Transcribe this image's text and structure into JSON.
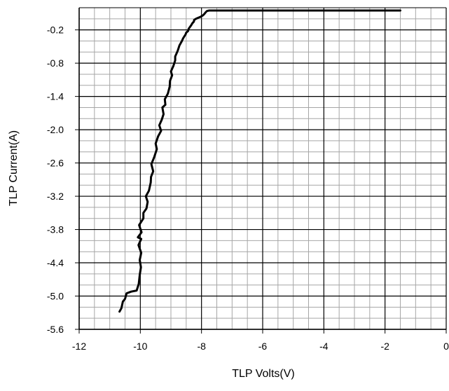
{
  "chart_data": {
    "type": "line",
    "title": "",
    "xlabel": "TLP Volts(V)",
    "ylabel": "TLP Current(A)",
    "xlim": [
      -12,
      0
    ],
    "ylim": [
      -5.6,
      0.2
    ],
    "x_ticks": [
      "-12",
      "-10",
      "-8",
      "-6",
      "-4",
      "-2",
      "0"
    ],
    "y_ticks": [
      "-0.2",
      "-0.8",
      "-1.4",
      "-2.0",
      "-2.6",
      "-3.2",
      "-3.8",
      "-4.4",
      "-5.0",
      "-5.6"
    ],
    "grid": true,
    "legend": false,
    "line_color": "#000000",
    "major_grid_color": "#000000",
    "minor_grid_color": "#a6a6a6",
    "series": [
      {
        "x": [
          -10.68,
          -10.62,
          -10.57,
          -10.5,
          -10.45,
          -10.3,
          -10.12,
          -10.05,
          -10.02,
          -9.98,
          -10.02,
          -9.97,
          -10.06,
          -9.97,
          -10.08,
          -9.96,
          -10.04,
          -9.9,
          -9.9,
          -9.8,
          -9.76,
          -9.82,
          -9.72,
          -9.66,
          -9.65,
          -9.58,
          -9.64,
          -9.55,
          -9.46,
          -9.5,
          -9.42,
          -9.32,
          -9.38,
          -9.3,
          -9.24,
          -9.28,
          -9.18,
          -9.2,
          -9.1,
          -9.04,
          -9.03,
          -8.96,
          -9.0,
          -8.92,
          -8.86,
          -8.86,
          -8.78,
          -8.72,
          -8.64,
          -8.6,
          -8.52,
          -8.5,
          -8.44,
          -8.42,
          -8.34,
          -8.3,
          -8.25,
          -8.24,
          -8.18,
          -8.1,
          -8.02,
          -7.96,
          -7.92,
          -7.86,
          -7.82,
          -7.75,
          -7.72,
          -7.66,
          -7.62,
          -7.55,
          -7.4,
          -7.0,
          -6.0,
          -5.0,
          -4.0,
          -3.0,
          -2.0,
          -1.5
        ],
        "y": [
          -5.28,
          -5.22,
          -5.1,
          -5.05,
          -4.95,
          -4.92,
          -4.9,
          -4.78,
          -4.62,
          -4.48,
          -4.35,
          -4.22,
          -4.08,
          -3.97,
          -3.94,
          -3.85,
          -3.72,
          -3.6,
          -3.5,
          -3.42,
          -3.3,
          -3.2,
          -3.1,
          -2.95,
          -2.85,
          -2.75,
          -2.62,
          -2.5,
          -2.35,
          -2.25,
          -2.12,
          -2.02,
          -1.92,
          -1.82,
          -1.72,
          -1.6,
          -1.55,
          -1.45,
          -1.35,
          -1.22,
          -1.12,
          -1.02,
          -0.95,
          -0.85,
          -0.75,
          -0.68,
          -0.58,
          -0.48,
          -0.4,
          -0.35,
          -0.28,
          -0.25,
          -0.22,
          -0.18,
          -0.12,
          -0.08,
          -0.05,
          -0.02,
          0.0,
          0.02,
          0.04,
          0.06,
          0.08,
          0.12,
          0.14,
          0.15,
          0.15,
          0.15,
          0.15,
          0.15,
          0.15,
          0.15,
          0.15,
          0.15,
          0.15,
          0.15,
          0.15,
          0.15
        ]
      }
    ]
  }
}
